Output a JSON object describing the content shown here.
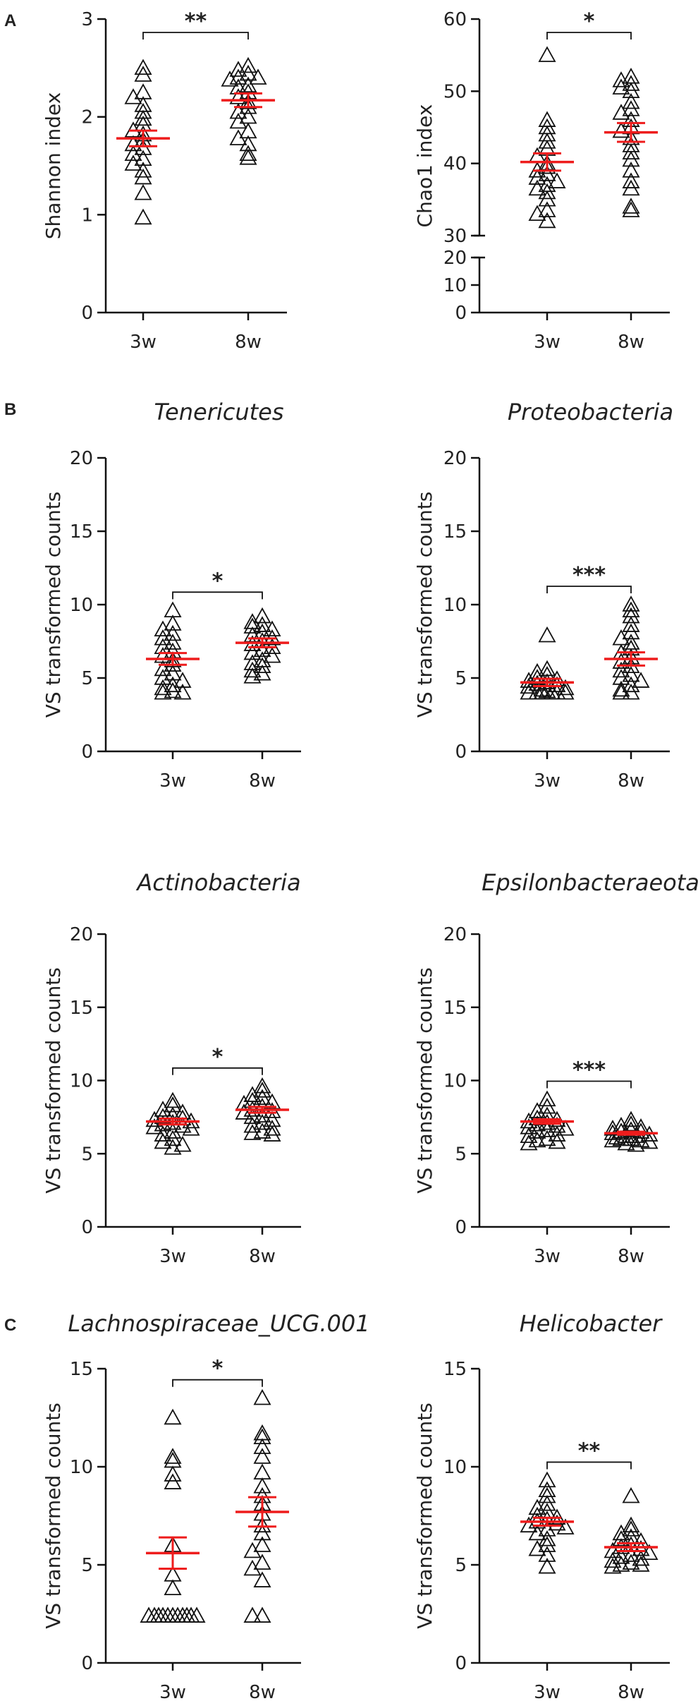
{
  "figure": {
    "panel_letters": [
      "A",
      "B",
      "C"
    ]
  },
  "colors": {
    "mean_bar": "#ee1c1c",
    "axis": "#111111",
    "marker": "#111111"
  },
  "chart_data": [
    {
      "id": "shannon",
      "panel": "A",
      "type": "scatter",
      "title": "",
      "ylabel": "Shannon index",
      "categories": [
        "3w",
        "8w"
      ],
      "ylim": [
        0,
        3
      ],
      "yticks": [
        0,
        1,
        2,
        3
      ],
      "mean": [
        1.78,
        2.17
      ],
      "sem": [
        0.08,
        0.07
      ],
      "significance": "**",
      "groups": [
        [
          2.5,
          2.43,
          2.25,
          2.2,
          2.12,
          2.05,
          1.98,
          1.92,
          1.86,
          1.82,
          1.76,
          1.72,
          1.68,
          1.62,
          1.57,
          1.52,
          1.45,
          1.38,
          1.22,
          0.97
        ],
        [
          2.52,
          2.48,
          2.44,
          2.4,
          2.4,
          2.38,
          2.32,
          2.3,
          2.25,
          2.2,
          2.15,
          2.1,
          2.05,
          2.0,
          1.95,
          1.85,
          1.78,
          1.72,
          1.62,
          1.58
        ]
      ]
    },
    {
      "id": "chao1",
      "panel": "A",
      "type": "scatter",
      "title": "",
      "ylabel": "Chao1 index",
      "categories": [
        "3w",
        "8w"
      ],
      "ylim": [
        0,
        60
      ],
      "yticks": [
        0,
        10,
        20,
        30,
        40,
        50,
        60
      ],
      "ybreak": [
        20,
        30
      ],
      "mean": [
        40.2,
        44.3
      ],
      "sem": [
        1.2,
        1.3
      ],
      "significance": "*",
      "groups": [
        [
          55,
          46,
          45,
          44,
          43,
          42,
          41,
          40,
          39.5,
          39,
          38.5,
          38,
          37.5,
          37,
          36.5,
          36,
          35,
          33.5,
          33,
          32
        ],
        [
          52,
          51.5,
          51,
          50.5,
          50,
          48.5,
          47.5,
          47,
          46,
          45,
          44.5,
          43.5,
          42.5,
          41.5,
          40.5,
          39,
          37.5,
          36.5,
          34,
          33.5
        ]
      ]
    },
    {
      "id": "tenericutes",
      "panel": "B",
      "type": "scatter",
      "title": "Tenericutes",
      "ylabel": "VS transformed counts",
      "categories": [
        "3w",
        "8w"
      ],
      "ylim": [
        0,
        20
      ],
      "yticks": [
        0,
        5,
        10,
        15,
        20
      ],
      "mean": [
        6.3,
        7.4
      ],
      "sem": [
        0.4,
        0.3
      ],
      "significance": "*",
      "groups": [
        [
          9.6,
          8.7,
          8.3,
          8.0,
          7.7,
          7.4,
          7.1,
          6.8,
          6.5,
          6.2,
          5.9,
          5.6,
          5.3,
          5.0,
          4.8,
          4.5,
          4.3,
          4.1,
          4.0,
          4.0
        ],
        [
          9.2,
          8.8,
          8.6,
          8.5,
          8.3,
          8.1,
          7.9,
          7.7,
          7.5,
          7.3,
          7.1,
          6.9,
          6.7,
          6.5,
          6.2,
          6.0,
          5.8,
          5.5,
          5.3,
          5.1
        ]
      ]
    },
    {
      "id": "proteobacteria",
      "panel": "B",
      "type": "scatter",
      "title": "Proteobacteria",
      "ylabel": "VS transformed counts",
      "categories": [
        "3w",
        "8w"
      ],
      "ylim": [
        0,
        20
      ],
      "yticks": [
        0,
        5,
        10,
        15,
        20
      ],
      "mean": [
        4.7,
        6.3
      ],
      "sem": [
        0.25,
        0.45
      ],
      "significance": "***",
      "groups": [
        [
          7.9,
          5.6,
          5.4,
          5.2,
          5.0,
          4.9,
          4.8,
          4.7,
          4.6,
          4.5,
          4.4,
          4.3,
          4.2,
          4.1,
          4.0,
          4.0,
          4.0,
          4.0,
          4.0,
          4.0
        ],
        [
          10.0,
          9.6,
          9.2,
          8.6,
          8.1,
          7.7,
          7.4,
          7.0,
          6.7,
          6.4,
          6.1,
          5.8,
          5.5,
          5.2,
          5.0,
          4.8,
          4.5,
          4.2,
          4.0,
          4.0
        ]
      ]
    },
    {
      "id": "actinobacteria",
      "panel": "B",
      "type": "scatter",
      "title": "Actinobacteria",
      "ylabel": "VS transformed counts",
      "categories": [
        "3w",
        "8w"
      ],
      "ylim": [
        0,
        20
      ],
      "yticks": [
        0,
        5,
        10,
        15,
        20
      ],
      "mean": [
        7.2,
        8.0
      ],
      "sem": [
        0.2,
        0.2
      ],
      "significance": "*",
      "groups": [
        [
          8.6,
          8.3,
          8.0,
          7.8,
          7.6,
          7.5,
          7.4,
          7.3,
          7.2,
          7.1,
          7.0,
          6.9,
          6.8,
          6.7,
          6.5,
          6.3,
          6.0,
          5.8,
          5.6,
          5.4
        ],
        [
          9.6,
          9.3,
          9.0,
          8.8,
          8.6,
          8.5,
          8.4,
          8.2,
          8.0,
          7.9,
          7.8,
          7.6,
          7.5,
          7.3,
          7.1,
          6.9,
          6.7,
          6.5,
          6.4,
          6.3
        ]
      ]
    },
    {
      "id": "epsilonbacteraeota",
      "panel": "B",
      "type": "scatter",
      "title": "Epsilonbacteraeota",
      "ylabel": "VS transformed counts",
      "categories": [
        "3w",
        "8w"
      ],
      "ylim": [
        0,
        20
      ],
      "yticks": [
        0,
        5,
        10,
        15,
        20
      ],
      "mean": [
        7.2,
        6.4
      ],
      "sem": [
        0.15,
        0.1
      ],
      "significance": "***",
      "groups": [
        [
          8.7,
          8.2,
          7.9,
          7.6,
          7.4,
          7.3,
          7.2,
          7.1,
          7.0,
          6.9,
          6.8,
          6.7,
          6.6,
          6.5,
          6.3,
          6.2,
          6.0,
          5.9,
          5.8,
          5.7
        ],
        [
          7.3,
          7.0,
          6.9,
          6.8,
          6.7,
          6.6,
          6.5,
          6.5,
          6.4,
          6.3,
          6.2,
          6.2,
          6.1,
          6.0,
          6.0,
          5.9,
          5.9,
          5.8,
          5.7,
          5.6
        ]
      ]
    },
    {
      "id": "lachnospiraceae",
      "panel": "C",
      "type": "scatter",
      "title": "Lachnospiraceae_UCG.001",
      "ylabel": "VS transformed counts",
      "categories": [
        "3w",
        "8w"
      ],
      "ylim": [
        0,
        15
      ],
      "yticks": [
        0,
        5,
        10,
        15
      ],
      "mean": [
        5.6,
        7.7
      ],
      "sem": [
        0.8,
        0.75
      ],
      "significance": "*",
      "groups": [
        [
          12.5,
          10.5,
          10.3,
          9.6,
          9.2,
          6.0,
          4.5,
          3.8,
          2.4,
          2.4,
          2.4,
          2.4,
          2.4,
          2.4,
          2.4,
          2.4,
          2.4,
          2.4,
          2.4
        ],
        [
          13.5,
          11.7,
          11.5,
          11.0,
          10.5,
          9.7,
          9.0,
          8.5,
          8.1,
          7.6,
          7.0,
          6.6,
          6.0,
          5.7,
          5.1,
          4.8,
          4.2,
          2.4,
          2.4
        ]
      ]
    },
    {
      "id": "helicobacter",
      "panel": "C",
      "type": "scatter",
      "title": "Helicobacter",
      "ylabel": "VS transformed counts",
      "categories": [
        "3w",
        "8w"
      ],
      "ylim": [
        0,
        15
      ],
      "yticks": [
        0,
        5,
        10,
        15
      ],
      "mean": [
        7.2,
        5.9
      ],
      "sem": [
        0.2,
        0.2
      ],
      "significance": "**",
      "groups": [
        [
          9.3,
          8.8,
          8.5,
          8.1,
          7.9,
          7.7,
          7.5,
          7.4,
          7.3,
          7.2,
          7.1,
          7.0,
          6.9,
          6.8,
          6.6,
          6.3,
          6.0,
          5.8,
          5.5,
          4.9
        ],
        [
          8.5,
          7.0,
          6.8,
          6.6,
          6.4,
          6.3,
          6.2,
          6.0,
          5.9,
          5.8,
          5.7,
          5.6,
          5.5,
          5.4,
          5.3,
          5.2,
          5.1,
          5.0,
          5.0,
          4.9
        ]
      ]
    }
  ]
}
